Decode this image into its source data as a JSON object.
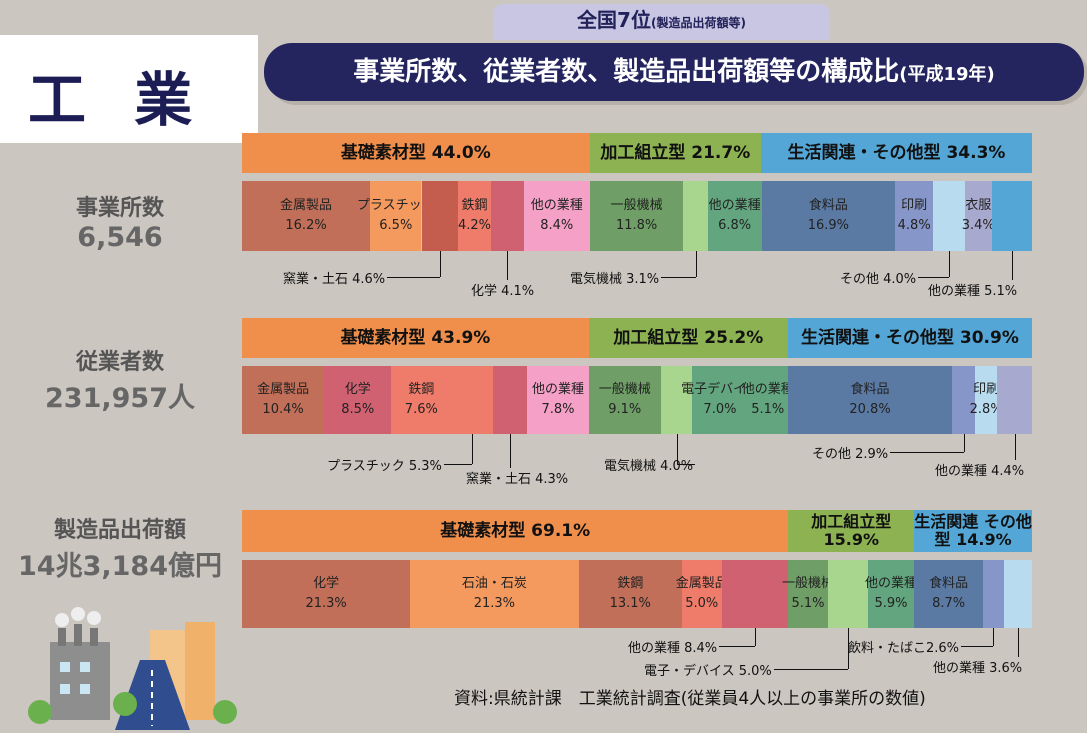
{
  "header": {
    "section_title": "工 業",
    "rank_main": "全国7位",
    "rank_note": "(製造品出荷額等)",
    "banner_main": "事業所数、従業者数、製造品出荷額等の構成比",
    "banner_note": "(平成19年)"
  },
  "rows": [
    {
      "label": "事業所数",
      "value": "6,546"
    },
    {
      "label": "従業者数",
      "value": "231,957人"
    },
    {
      "label": "製造品出荷額",
      "value": "14兆3,184億円"
    }
  ],
  "source": "資料:県統計課　工業統計調査(従業員4人以上の事業所の数値)",
  "colors": {
    "basic": "#f08f4c",
    "assembly": "#8db252",
    "life": "#54a6d6",
    "metal": "#c16f58",
    "plastic": "#f59a5f",
    "ceramic": "#c45d4e",
    "steel": "#ef7c6a",
    "chem": "#cf6171",
    "other_pink": "#f4a0c7",
    "machine": "#6f9e67",
    "elec": "#a9d68e",
    "other_green": "#62a57e",
    "food": "#5a7aa4",
    "print": "#8796c8",
    "other_lt": "#b8dbf0",
    "cloth": "#a8a9ce"
  },
  "chart_data": [
    {
      "type": "bar",
      "title": "事業所数",
      "categories": [
        "基礎素材型",
        "加工組立型",
        "生活関連・その他型"
      ],
      "category_values": [
        44.0,
        21.7,
        34.3
      ],
      "category_labels": [
        "基礎素材型 44.0%",
        "加工組立型 21.7%",
        "生活関連・その他型 34.3%"
      ],
      "series": [
        {
          "name": "金属製品",
          "value": 16.2,
          "text": "16.2%"
        },
        {
          "name": "プラスチック",
          "value": 6.5,
          "text": "6.5%"
        },
        {
          "name": "窯業・土石",
          "value": 4.6,
          "text": "窯業・土石 4.6%"
        },
        {
          "name": "鉄鋼",
          "value": 4.2,
          "text": "4.2%"
        },
        {
          "name": "化学",
          "value": 4.1,
          "text": "化学 4.1%"
        },
        {
          "name": "他の業種",
          "value": 8.4,
          "text": "8.4%"
        },
        {
          "name": "一般機械",
          "value": 11.8,
          "text": "11.8%"
        },
        {
          "name": "電気機械",
          "value": 3.1,
          "text": "電気機械 3.1%"
        },
        {
          "name": "他の業種",
          "value": 6.8,
          "text": "6.8%"
        },
        {
          "name": "食料品",
          "value": 16.9,
          "text": "16.9%"
        },
        {
          "name": "印刷",
          "value": 4.8,
          "text": "4.8%"
        },
        {
          "name": "その他",
          "value": 4.0,
          "text": "その他 4.0%"
        },
        {
          "name": "衣服",
          "value": 3.4,
          "text": "3.4%"
        },
        {
          "name": "他の業種",
          "value": 5.1,
          "text": "他の業種 5.1%"
        }
      ]
    },
    {
      "type": "bar",
      "title": "従業者数",
      "categories": [
        "基礎素材型",
        "加工組立型",
        "生活関連・その他型"
      ],
      "category_values": [
        43.9,
        25.2,
        30.9
      ],
      "category_labels": [
        "基礎素材型 43.9%",
        "加工組立型 25.2%",
        "生活関連・その他型 30.9%"
      ],
      "series": [
        {
          "name": "金属製品",
          "value": 10.4,
          "text": "10.4%"
        },
        {
          "name": "化学",
          "value": 8.5,
          "text": "8.5%"
        },
        {
          "name": "鉄鋼",
          "value": 7.6,
          "text": "7.6%"
        },
        {
          "name": "プラスチック",
          "value": 5.3,
          "text": "プラスチック 5.3%"
        },
        {
          "name": "窯業・土石",
          "value": 4.3,
          "text": "窯業・土石 4.3%"
        },
        {
          "name": "他の業種",
          "value": 7.8,
          "text": "7.8%"
        },
        {
          "name": "一般機械",
          "value": 9.1,
          "text": "9.1%"
        },
        {
          "name": "電気機械",
          "value": 4.0,
          "text": "電気機械 4.0%"
        },
        {
          "name": "電子デバイス",
          "value": 7.0,
          "text": "7.0%"
        },
        {
          "name": "他の業種",
          "value": 5.1,
          "text": "5.1%"
        },
        {
          "name": "食料品",
          "value": 20.8,
          "text": "20.8%"
        },
        {
          "name": "その他",
          "value": 2.9,
          "text": "その他 2.9%"
        },
        {
          "name": "印刷",
          "value": 2.8,
          "text": "2.8%"
        },
        {
          "name": "他の業種",
          "value": 4.4,
          "text": "他の業種 4.4%"
        }
      ]
    },
    {
      "type": "bar",
      "title": "製造品出荷額",
      "categories": [
        "基礎素材型",
        "加工組立型",
        "生活関連・その他型"
      ],
      "category_values": [
        69.1,
        15.9,
        14.9
      ],
      "category_labels": [
        "基礎素材型 69.1%",
        "加工組立型 15.9%",
        "生活関連 その他型 14.9%"
      ],
      "series": [
        {
          "name": "化学",
          "value": 21.3,
          "text": "21.3%"
        },
        {
          "name": "石油・石炭",
          "value": 21.3,
          "text": "21.3%"
        },
        {
          "name": "鉄鋼",
          "value": 13.1,
          "text": "13.1%"
        },
        {
          "name": "金属製品",
          "value": 5.0,
          "text": "5.0%"
        },
        {
          "name": "他の業種",
          "value": 8.4,
          "text": "他の業種 8.4%"
        },
        {
          "name": "一般機械",
          "value": 5.1,
          "text": "5.1%"
        },
        {
          "name": "電子・デバイス",
          "value": 5.0,
          "text": "電子・デバイス 5.0%"
        },
        {
          "name": "他の業種",
          "value": 5.9,
          "text": "5.9%"
        },
        {
          "name": "食料品",
          "value": 8.7,
          "text": "8.7%"
        },
        {
          "name": "飲料・たばこ",
          "value": 2.6,
          "text": "飲料・たばこ2.6%"
        },
        {
          "name": "他の業種",
          "value": 3.6,
          "text": "他の業種 3.6%"
        }
      ]
    }
  ]
}
